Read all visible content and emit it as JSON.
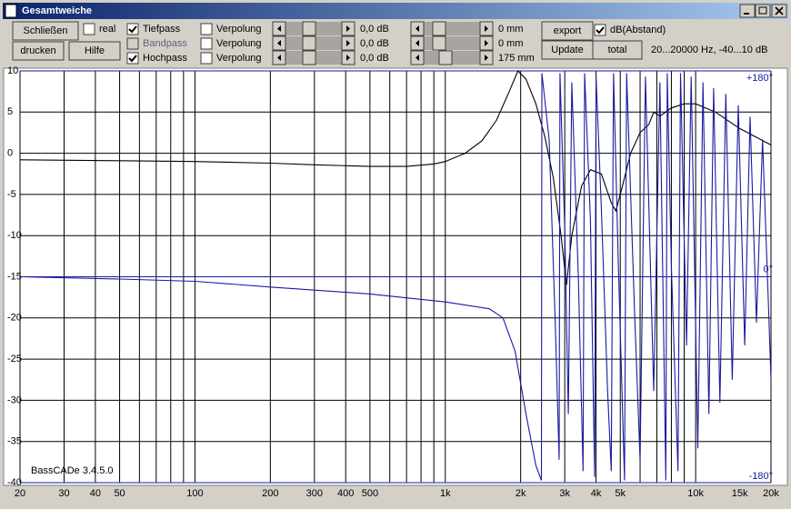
{
  "window": {
    "title": "Gesamtweiche"
  },
  "buttons": [
    "Schließen",
    "drucken",
    "Hilfe",
    "export",
    "Update",
    "total"
  ],
  "checkboxes": [
    {
      "label": "real",
      "checked": false
    },
    {
      "label": "Tiefpass",
      "checked": true
    },
    {
      "label": "Bandpass",
      "checked": false,
      "enabled": false
    },
    {
      "label": "Hochpass",
      "checked": true
    },
    {
      "label": "Verpolung",
      "checked": false
    },
    {
      "label": "Verpolung",
      "checked": false
    },
    {
      "label": "Verpolung",
      "checked": false
    },
    {
      "label": "dB(Abstand)",
      "checked": true
    }
  ],
  "level_labels": [
    "0,0 dB",
    "0,0 dB",
    "0,0 dB"
  ],
  "delay_labels": [
    "0 mm",
    "0 mm",
    "175 mm"
  ],
  "range_info": "20...20000 Hz, -40...10 dB",
  "chart_data": {
    "type": "line",
    "log_x": true,
    "grid": true,
    "annotation": "BassCADe 3.4.5.0",
    "xlim": [
      20,
      20000
    ],
    "ylim": [
      -40,
      10
    ],
    "y2lim": [
      -180,
      180
    ],
    "xticks": [
      20,
      30,
      40,
      50,
      100,
      200,
      300,
      400,
      500,
      {
        "value": 1000,
        "label": "1k"
      },
      {
        "value": 2000,
        "label": "2k"
      },
      {
        "value": 3000,
        "label": "3k"
      },
      {
        "value": 4000,
        "label": "4k"
      },
      {
        "value": 5000,
        "label": "5k"
      },
      {
        "value": 10000,
        "label": "10k"
      },
      {
        "value": 15000,
        "label": "15k"
      },
      {
        "value": 20000,
        "label": "20k"
      }
    ],
    "xgrid": [
      20,
      30,
      40,
      50,
      60,
      70,
      80,
      90,
      100,
      200,
      300,
      400,
      500,
      600,
      700,
      800,
      900,
      1000,
      2000,
      3000,
      4000,
      5000,
      6000,
      7000,
      8000,
      9000,
      10000,
      20000
    ],
    "yticks": [
      10,
      5,
      0,
      -5,
      -10,
      -15,
      -20,
      -25,
      -30,
      -35,
      -40
    ],
    "y2ticks": [
      {
        "value": 180,
        "label": "+180°"
      },
      {
        "value": 0,
        "label": "0°"
      },
      {
        "value": -180,
        "label": "-180°"
      }
    ],
    "series": [
      {
        "color": "#000000",
        "x": [
          20,
          50,
          100,
          200,
          300,
          500,
          700,
          900,
          1000,
          1200,
          1400,
          1600,
          1800,
          1950,
          2100,
          2300,
          2500,
          2700,
          2900,
          3050,
          3200,
          3500,
          3800,
          4200,
          4600,
          4800,
          5100,
          5500,
          6000,
          6500,
          6800,
          7200,
          8000,
          9000,
          10000,
          12000,
          15000,
          20000
        ],
        "values": [
          -0.8,
          -0.9,
          -1.0,
          -1.2,
          -1.4,
          -1.6,
          -1.6,
          -1.3,
          -1.0,
          0,
          1.5,
          4,
          7.5,
          10,
          9,
          6,
          2,
          -3,
          -10,
          -16,
          -10,
          -4,
          -2,
          -2.5,
          -6,
          -7,
          -4,
          0,
          2.5,
          3.5,
          5,
          4.5,
          5.5,
          6,
          6,
          5,
          3,
          1
        ]
      },
      {
        "color": "#1a1aa0",
        "axis": "y2",
        "x": [
          20,
          50,
          100,
          200,
          500,
          1000,
          1500,
          1700,
          1900,
          2100,
          2300,
          2420,
          2430,
          2600,
          2750,
          2850,
          2870,
          3000,
          3100,
          3200,
          3400,
          3550,
          3600,
          3800,
          3950,
          4000,
          4200,
          4450,
          4600,
          4700,
          4900,
          5200,
          5300,
          5700,
          6000,
          6300,
          6800,
          7200,
          7600,
          7700,
          8000,
          8500,
          8700,
          9200,
          9600,
          10200,
          10700,
          11300,
          11800,
          12500,
          13200,
          14000,
          14800,
          15700,
          16500,
          17500,
          18500,
          19500,
          20000
        ],
        "values": [
          0,
          -2,
          -4,
          -9,
          -15,
          -22,
          -28,
          -36,
          -65,
          -120,
          -165,
          -178,
          178,
          120,
          -40,
          -160,
          178,
          40,
          -120,
          170,
          0,
          -170,
          178,
          50,
          -175,
          175,
          60,
          -100,
          -170,
          178,
          20,
          -178,
          178,
          -30,
          -160,
          175,
          -100,
          170,
          -178,
          178,
          10,
          -170,
          178,
          -60,
          175,
          -150,
          170,
          -120,
          165,
          -110,
          160,
          -90,
          150,
          -60,
          140,
          -40,
          120,
          -20,
          -90
        ]
      }
    ]
  }
}
